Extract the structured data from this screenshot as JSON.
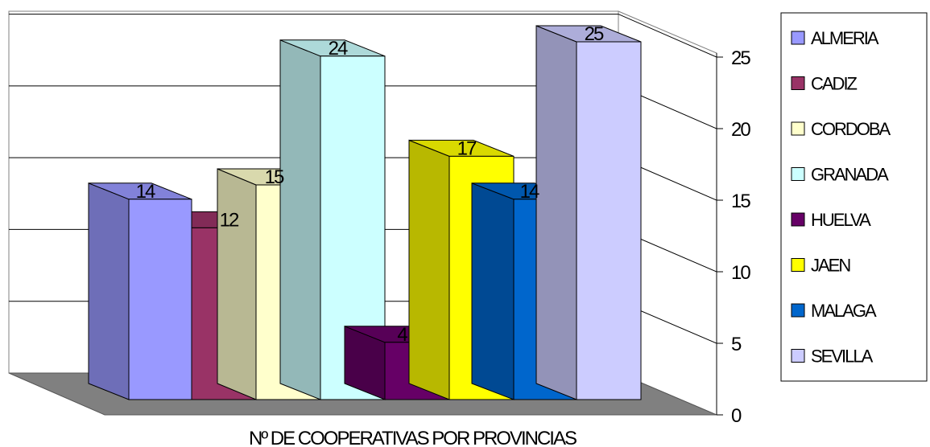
{
  "chart_data": {
    "type": "bar",
    "title": "",
    "xlabel": "Nº DE COOPERATIVAS POR PROVINCIAS",
    "ylabel": "",
    "ylim": [
      0,
      25
    ],
    "yticks": [
      0,
      5,
      10,
      15,
      20,
      25
    ],
    "grid": true,
    "style": "3d",
    "legend_position": "right",
    "categories": [
      "ALMERIA",
      "CADIZ",
      "CORDOBA",
      "GRANADA",
      "HUELVA",
      "JAEN",
      "MALAGA",
      "SEVILLA"
    ],
    "values": [
      14,
      12,
      15,
      24,
      4,
      17,
      14,
      25
    ],
    "colors": [
      "#9999FF",
      "#993366",
      "#FFFFCC",
      "#CCFFFF",
      "#660066",
      "#FFFF00",
      "#0066CC",
      "#CCCCFF"
    ]
  }
}
